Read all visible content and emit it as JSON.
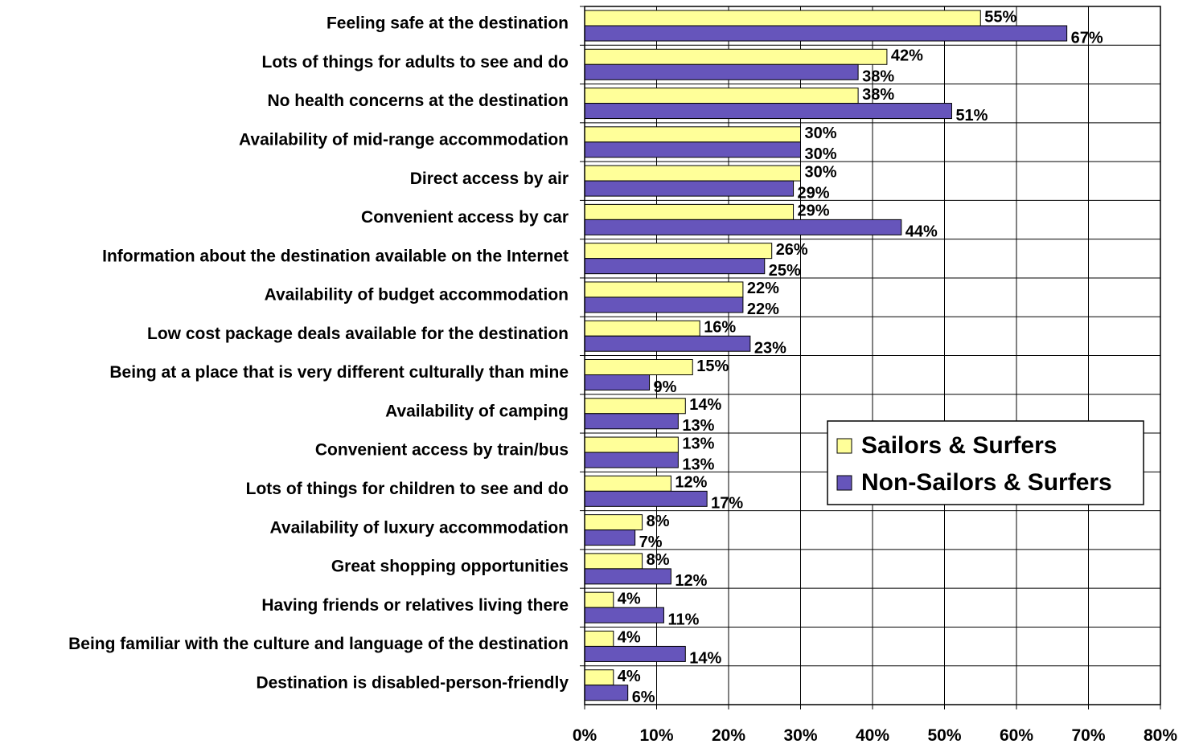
{
  "chart_data": {
    "type": "bar",
    "orientation": "horizontal",
    "title": "",
    "xlabel": "",
    "ylabel": "",
    "xlim": [
      0,
      80
    ],
    "x_ticks": [
      "0%",
      "10%",
      "20%",
      "30%",
      "40%",
      "50%",
      "60%",
      "70%",
      "80%"
    ],
    "grid": true,
    "legend_position": "right",
    "categories": [
      "Feeling safe at the destination",
      "Lots of things for adults to see and do",
      "No health concerns at the destination",
      "Availability of mid-range accommodation",
      "Direct access by air",
      "Convenient access by car",
      "Information about the destination available on the Internet",
      "Availability of budget accommodation",
      "Low cost package deals available for the destination",
      "Being at a place that is very different culturally than mine",
      "Availability of camping",
      "Convenient access by train/bus",
      "Lots of things for children to see and do",
      "Availability of luxury accommodation",
      "Great shopping opportunities",
      "Having friends or relatives living there",
      "Being familiar with the culture and language of the destination",
      "Destination is disabled-person-friendly"
    ],
    "series": [
      {
        "name": "Sailors & Surfers",
        "color": "#ffff99",
        "values": [
          55,
          42,
          38,
          30,
          30,
          29,
          26,
          22,
          16,
          15,
          14,
          13,
          12,
          8,
          8,
          4,
          4,
          4
        ],
        "labels": [
          "55%",
          "42%",
          "38%",
          "30%",
          "30%",
          "29%",
          "26%",
          "22%",
          "16%",
          "15%",
          "14%",
          "13%",
          "12%",
          "8%",
          "8%",
          "4%",
          "4%",
          "4%"
        ]
      },
      {
        "name": "Non-Sailors & Surfers",
        "color": "#6655bb",
        "values": [
          67,
          38,
          51,
          30,
          29,
          44,
          25,
          22,
          23,
          9,
          13,
          13,
          17,
          7,
          12,
          11,
          14,
          6
        ],
        "labels": [
          "67%",
          "38%",
          "51%",
          "30%",
          "29%",
          "44%",
          "25%",
          "22%",
          "23%",
          "9%",
          "13%",
          "13%",
          "17%",
          "7%",
          "12%",
          "11%",
          "14%",
          "6%"
        ]
      }
    ]
  }
}
